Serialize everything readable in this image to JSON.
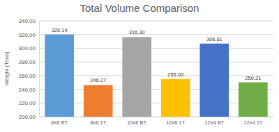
{
  "chart_data": {
    "type": "bar",
    "title": "Total Volume Comparison",
    "ylabel": "Weight (Tons)",
    "categories": [
      "8x6 BT",
      "8x6 1T",
      "10x6 BT",
      "10x6 1T",
      "12x4 BT",
      "12x4 1T"
    ],
    "values": [
      320.14,
      246.27,
      316.3,
      255.0,
      306.81,
      250.21
    ],
    "value_labels": [
      "320.14",
      "246.27",
      "316.30",
      "255.00",
      "306.81",
      "250.21"
    ],
    "colors": [
      "#5b9bd5",
      "#ed7d31",
      "#a5a5a5",
      "#ffc000",
      "#4472c4",
      "#70ad47"
    ],
    "ylim": [
      200,
      340
    ],
    "yticks": [
      {
        "value": 200,
        "label": "200.00"
      },
      {
        "value": 220,
        "label": "220.00"
      },
      {
        "value": 240,
        "label": "240.00"
      },
      {
        "value": 260,
        "label": "260.00"
      },
      {
        "value": 280,
        "label": "280.00"
      },
      {
        "value": 300,
        "label": "300.00"
      },
      {
        "value": 320,
        "label": "320.00"
      },
      {
        "value": 340,
        "label": "340.00"
      }
    ],
    "grid": true,
    "data_labels": true
  }
}
